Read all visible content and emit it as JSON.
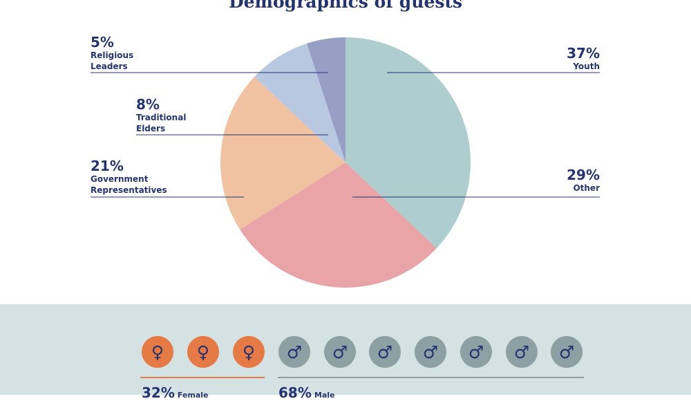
{
  "chart_data": {
    "type": "pie",
    "title": "Demographics of guests",
    "slices": [
      {
        "label": "Youth",
        "value": 37,
        "pct_label": "37%",
        "color": "#aecdce"
      },
      {
        "label": "Other",
        "value": 29,
        "pct_label": "29%",
        "color": "#e8a4a6"
      },
      {
        "label": "Government\nRepresentatives",
        "value": 21,
        "pct_label": "21%",
        "color": "#f0c2a2"
      },
      {
        "label": "Traditional\nElders",
        "value": 8,
        "pct_label": "8%",
        "color": "#b8c8e0"
      },
      {
        "label": "Religious\nLeaders",
        "value": 5,
        "pct_label": "5%",
        "color": "#989fc4"
      }
    ]
  },
  "gender": {
    "female": {
      "pct": "32%",
      "label": "Female",
      "icon": "female-symbol-icon",
      "glyph": "♀",
      "count": 3,
      "color": "#e67a45"
    },
    "male": {
      "pct": "68%",
      "label": "Male",
      "icon": "male-symbol-icon",
      "glyph": "♂",
      "count": 7,
      "color": "#8da0a4"
    }
  }
}
